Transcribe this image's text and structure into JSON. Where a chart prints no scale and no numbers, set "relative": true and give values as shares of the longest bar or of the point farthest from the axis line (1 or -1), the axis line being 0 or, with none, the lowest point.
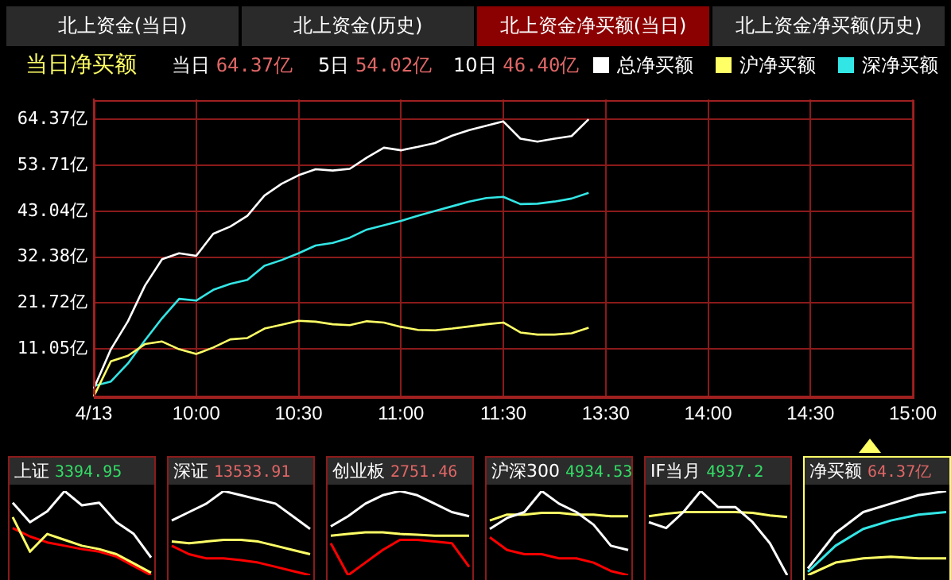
{
  "chart_data": [
    {
      "type": "line",
      "title": "当日净买额",
      "annotations": [
        "北上资金(当日)",
        "北上资金(历史)",
        "北上资金净买额(当日)",
        "北上资金净买额(历史)",
        "当日 64.37亿",
        "5日 54.02亿",
        "10日 46.40亿"
      ],
      "legend": "top right",
      "grid": true,
      "categories": [
        "4/13",
        null,
        null,
        null,
        null,
        null,
        "10:00",
        null,
        null,
        null,
        null,
        null,
        "10:30",
        null,
        null,
        null,
        null,
        null,
        "11:00",
        null,
        null,
        null,
        null,
        null,
        "11:30",
        null,
        null,
        null,
        null,
        null,
        "13:30",
        null,
        null,
        null,
        null,
        null,
        "14:00",
        null,
        null,
        null,
        null,
        null,
        "14:30",
        null,
        null,
        null,
        null,
        null,
        "15:00"
      ],
      "ylim": [
        0,
        69
      ],
      "yticks": [
        {
          "value": 11.05,
          "label": "11.05亿"
        },
        {
          "value": 21.72,
          "label": "21.72亿"
        },
        {
          "value": 32.38,
          "label": "32.38亿"
        },
        {
          "value": 43.04,
          "label": "43.04亿"
        },
        {
          "value": 53.71,
          "label": "53.71亿"
        },
        {
          "value": 64.37,
          "label": "64.37亿"
        }
      ],
      "series": [
        {
          "name": "总净买额",
          "color": "#ffffff",
          "values": [
            1.9,
            11.0,
            17.5,
            25.8,
            31.9,
            33.3,
            32.7,
            37.8,
            39.5,
            42.0,
            46.7,
            49.4,
            51.4,
            52.8,
            52.5,
            52.9,
            55.5,
            57.8,
            57.2,
            58.0,
            58.9,
            60.6,
            61.9,
            62.9,
            63.9,
            59.9,
            59.2,
            59.9,
            60.5,
            64.4,
            null,
            null,
            null,
            null,
            null,
            null,
            null,
            null,
            null,
            null,
            null,
            null,
            null,
            null,
            null,
            null,
            null,
            null,
            null
          ]
        },
        {
          "name": "沪净买额",
          "color": "#ffff66",
          "values": [
            0.1,
            8.2,
            9.5,
            12.2,
            12.8,
            11.0,
            9.9,
            11.4,
            13.3,
            13.6,
            15.8,
            16.7,
            17.6,
            17.4,
            16.8,
            16.6,
            17.5,
            17.2,
            16.2,
            15.5,
            15.4,
            15.8,
            16.3,
            16.8,
            17.2,
            14.9,
            14.4,
            14.4,
            14.7,
            16.0,
            null,
            null,
            null,
            null,
            null,
            null,
            null,
            null,
            null,
            null,
            null,
            null,
            null,
            null,
            null,
            null,
            null,
            null,
            null
          ]
        },
        {
          "name": "深净买额",
          "color": "#33e6e6",
          "values": [
            2.5,
            3.5,
            7.7,
            13.1,
            18.2,
            22.7,
            22.3,
            24.8,
            26.2,
            27.1,
            30.4,
            31.7,
            33.3,
            35.1,
            35.7,
            36.9,
            38.8,
            39.8,
            40.8,
            42.0,
            43.1,
            44.2,
            45.3,
            46.1,
            46.4,
            44.7,
            44.8,
            45.3,
            46.0,
            47.3,
            null,
            null,
            null,
            null,
            null,
            null,
            null,
            null,
            null,
            null,
            null,
            null,
            null,
            null,
            null,
            null,
            null,
            null,
            null
          ]
        }
      ]
    },
    {
      "type": "line",
      "title": "上证",
      "subtitle": "3394.95",
      "relative": true,
      "tick_labels": false,
      "categories": [
        null,
        null,
        null,
        null,
        null,
        null,
        null,
        null,
        null
      ],
      "series": [
        {
          "color": "#ffffff",
          "values": [
            0.86,
            0.63,
            0.76,
            1,
            0.83,
            0.86,
            0.63,
            0.49,
            0.21
          ]
        },
        {
          "color": "#ffff66",
          "values": [
            0.69,
            0.28,
            0.49,
            0.42,
            0.35,
            0.31,
            0.25,
            0.14,
            0.03
          ]
        },
        {
          "color": "#ff0000",
          "values": [
            0.56,
            0.46,
            0.39,
            0.35,
            0.31,
            0.28,
            0.22,
            0.11,
            0
          ]
        }
      ]
    },
    {
      "type": "line",
      "title": "深证",
      "subtitle": "13533.91",
      "relative": true,
      "tick_labels": false,
      "categories": [
        null,
        null,
        null,
        null,
        null,
        null,
        null,
        null,
        null
      ],
      "series": [
        {
          "color": "#ffffff",
          "values": [
            0.65,
            0.75,
            0.85,
            1,
            0.95,
            0.9,
            0.85,
            0.7,
            0.55
          ]
        },
        {
          "color": "#ffff66",
          "values": [
            0.4,
            0.38,
            0.4,
            0.42,
            0.42,
            0.4,
            0.35,
            0.3,
            0.25
          ]
        },
        {
          "color": "#ff0000",
          "values": [
            0.35,
            0.25,
            0.2,
            0.2,
            0.18,
            0.15,
            0.1,
            0.05,
            0
          ]
        }
      ]
    },
    {
      "type": "line",
      "title": "创业板",
      "subtitle": "2751.46",
      "relative": true,
      "tick_labels": false,
      "categories": [
        null,
        null,
        null,
        null,
        null,
        null,
        null,
        null,
        null
      ],
      "series": [
        {
          "color": "#ffffff",
          "values": [
            0.58,
            0.7,
            0.85,
            0.95,
            1,
            0.95,
            0.85,
            0.75,
            0.7
          ]
        },
        {
          "color": "#ffff66",
          "values": [
            0.47,
            0.49,
            0.51,
            0.51,
            0.49,
            0.48,
            0.47,
            0.47,
            0.47
          ]
        },
        {
          "color": "#ff0000",
          "values": [
            0.38,
            0,
            0.15,
            0.3,
            0.42,
            0.42,
            0.4,
            0.38,
            0.1
          ]
        }
      ]
    },
    {
      "type": "line",
      "title": "沪深300",
      "subtitle": "4934.53",
      "relative": true,
      "tick_labels": false,
      "categories": [
        null,
        null,
        null,
        null,
        null,
        null,
        null,
        null,
        null
      ],
      "series": [
        {
          "color": "#ffffff",
          "values": [
            0.55,
            0.68,
            0.75,
            1,
            0.85,
            0.75,
            0.6,
            0.35,
            0.3
          ]
        },
        {
          "color": "#ffff66",
          "values": [
            0.65,
            0.72,
            0.72,
            0.74,
            0.74,
            0.72,
            0.72,
            0.7,
            0.7
          ]
        },
        {
          "color": "#ff0000",
          "values": [
            0.45,
            0.3,
            0.25,
            0.25,
            0.2,
            0.2,
            0.15,
            0.05,
            0
          ]
        }
      ]
    },
    {
      "type": "line",
      "title": "IF当月",
      "subtitle": "4937.2",
      "relative": true,
      "tick_labels": false,
      "categories": [
        null,
        null,
        null,
        null,
        null,
        null,
        null,
        null,
        null
      ],
      "series": [
        {
          "color": "#ffffff",
          "values": [
            0.63,
            0.56,
            0.75,
            1,
            0.81,
            0.81,
            0.63,
            0.38,
            0
          ]
        },
        {
          "color": "#ffff66",
          "values": [
            0.7,
            0.73,
            0.75,
            0.75,
            0.75,
            0.75,
            0.74,
            0.71,
            0.69
          ]
        }
      ]
    },
    {
      "type": "line",
      "title": "净买额",
      "subtitle": "64.37亿",
      "relative": true,
      "tick_labels": false,
      "categories": [
        null,
        null,
        null,
        null,
        null,
        null
      ],
      "series": [
        {
          "color": "#ffffff",
          "values": [
            0.08,
            0.5,
            0.75,
            0.85,
            0.95,
            1
          ]
        },
        {
          "color": "#33e6e6",
          "values": [
            0.04,
            0.35,
            0.55,
            0.65,
            0.72,
            0.75
          ]
        },
        {
          "color": "#ffff66",
          "values": [
            0,
            0.15,
            0.2,
            0.22,
            0.2,
            0.2
          ]
        }
      ]
    }
  ]
}
